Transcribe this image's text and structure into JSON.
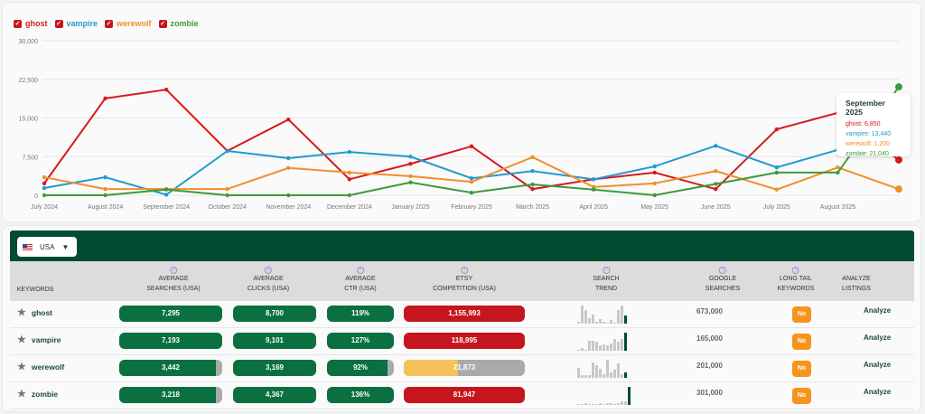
{
  "chart_data": {
    "type": "line",
    "x": [
      "July 2024",
      "August 2024",
      "September 2024",
      "October 2024",
      "November 2024",
      "December 2024",
      "January 2025",
      "February 2025",
      "March 2025",
      "April 2025",
      "May 2025",
      "June 2025",
      "July 2025",
      "August 2025",
      "September 2025"
    ],
    "xtick_labels": [
      "July 2024",
      "August 2024",
      "September 2024",
      "October 2024",
      "November 2024",
      "December 2024",
      "January 2025",
      "February 2025",
      "March 2025",
      "April 2025",
      "May 2025",
      "June 2025",
      "July 2025",
      "August 2025"
    ],
    "yticks": [
      "0",
      "7,500",
      "15,000",
      "22,500",
      "30,000"
    ],
    "ylim": [
      0,
      30000
    ],
    "grid": true,
    "legend": "top-left",
    "series": [
      {
        "name": "ghost",
        "color": "#d7191c",
        "values": [
          2300,
          18800,
          20500,
          8600,
          14700,
          3100,
          6100,
          9500,
          1200,
          3100,
          4400,
          1200,
          12800,
          16000,
          6850
        ]
      },
      {
        "name": "vampire",
        "color": "#1f9bd1",
        "values": [
          1400,
          3500,
          100,
          8600,
          7200,
          8400,
          7500,
          3300,
          4700,
          3100,
          5600,
          9600,
          5400,
          8800,
          13440
        ]
      },
      {
        "name": "werewolf",
        "color": "#f28e2b",
        "values": [
          3500,
          1200,
          1200,
          1200,
          5300,
          4400,
          3700,
          2600,
          7400,
          1600,
          2300,
          4700,
          1100,
          5400,
          1200
        ]
      },
      {
        "name": "zombie",
        "color": "#3c9a3c",
        "values": [
          0,
          0,
          1100,
          0,
          0,
          0,
          2500,
          500,
          2100,
          1100,
          0,
          2200,
          4400,
          4400,
          21040
        ]
      }
    ],
    "tooltip": {
      "title": "September 2025",
      "lines": [
        "ghost: 6,850",
        "vampire: 13,440",
        "werewolf: 1,200",
        "zombie: 21,040"
      ]
    }
  },
  "table": {
    "country": "USA",
    "headers": {
      "keywords": "KEYWORDS",
      "avg_searches": [
        "AVERAGE",
        "SEARCHES (USA)"
      ],
      "avg_clicks": [
        "AVERAGE",
        "CLICKS (USA)"
      ],
      "avg_ctr": [
        "AVERAGE",
        "CTR (USA)"
      ],
      "etsy": [
        "ETSY",
        "COMPETITION (USA)"
      ],
      "trend": [
        "SEARCH",
        "TREND"
      ],
      "google": [
        "GOOGLE",
        "SEARCHES"
      ],
      "longtail": [
        "LONG TAIL",
        "KEYWORDS"
      ],
      "analyze": [
        "ANALYZE",
        "LISTINGS"
      ],
      "help": "?"
    },
    "rows": [
      {
        "keyword": "ghost",
        "searches": "7,295",
        "searches_fill": 1,
        "clicks": "8,700",
        "clicks_fill": 1,
        "ctr": "119%",
        "ctr_fill": 1,
        "etsy": "1,155,993",
        "etsy_level": "high",
        "etsy_fill": 1,
        "trend": [
          2,
          16,
          12,
          5,
          8,
          2,
          4,
          2,
          1,
          3,
          1,
          12,
          16,
          7
        ],
        "google": "673,000",
        "longtail": "No",
        "analyze": "Analyze"
      },
      {
        "keyword": "vampire",
        "searches": "7,193",
        "searches_fill": 1,
        "clicks": "9,101",
        "clicks_fill": 1,
        "ctr": "127%",
        "ctr_fill": 1,
        "etsy": "118,995",
        "etsy_level": "high",
        "etsy_fill": 1,
        "trend": [
          1,
          3,
          0,
          11,
          11,
          10,
          6,
          7,
          6,
          8,
          13,
          10,
          13,
          20
        ],
        "google": "165,000",
        "longtail": "No",
        "analyze": "Analyze"
      },
      {
        "keyword": "werewolf",
        "searches": "3,442",
        "searches_fill": 0.94,
        "clicks": "3,169",
        "clicks_fill": 1,
        "ctr": "92%",
        "ctr_fill": 0.9,
        "etsy": "21,873",
        "etsy_level": "medium",
        "etsy_fill": 0.45,
        "trend": [
          8,
          2,
          2,
          2,
          12,
          10,
          7,
          3,
          14,
          4,
          6,
          11,
          3,
          4
        ],
        "google": "201,000",
        "longtail": "No",
        "analyze": "Analyze"
      },
      {
        "keyword": "zombie",
        "searches": "3,218",
        "searches_fill": 0.94,
        "clicks": "4,367",
        "clicks_fill": 1,
        "ctr": "136%",
        "ctr_fill": 1,
        "etsy": "81,947",
        "etsy_level": "high",
        "etsy_fill": 1,
        "trend": [
          0,
          0,
          1,
          0,
          0,
          0,
          1,
          0,
          1,
          1,
          0,
          1,
          2,
          2,
          10
        ],
        "google": "301,000",
        "longtail": "No",
        "analyze": "Analyze"
      }
    ]
  },
  "colors": {
    "dark_green": "#024b33",
    "pill_green": "#0a7040",
    "red": "#c4161c",
    "yellow": "#f4c15a",
    "orange": "#f7941d",
    "grey": "#aaaaaa"
  }
}
